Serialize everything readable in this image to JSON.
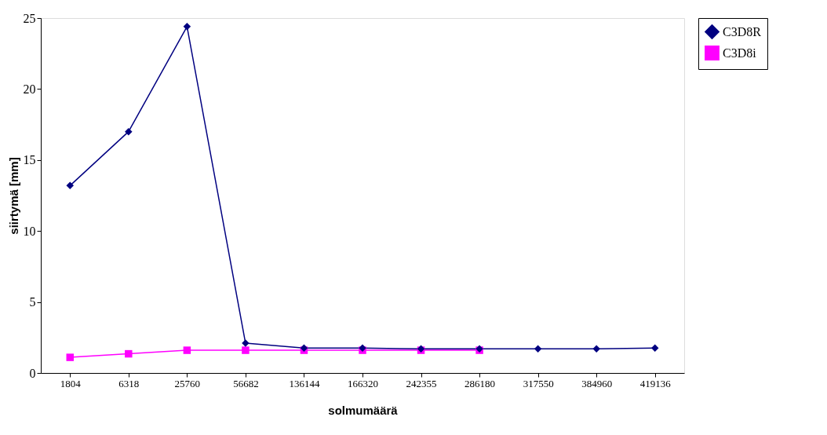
{
  "chart_data": {
    "type": "line",
    "xlabel": "solmumäärä",
    "ylabel": "siirtymä [mm]",
    "categories": [
      "1804",
      "6318",
      "25760",
      "56682",
      "136144",
      "166320",
      "242355",
      "286180",
      "317550",
      "384960",
      "419136"
    ],
    "series": [
      {
        "name": "C3D8R",
        "color": "#000080",
        "marker": "diamond",
        "values": [
          13.2,
          17.0,
          24.4,
          2.1,
          1.75,
          1.75,
          1.7,
          1.7,
          1.7,
          1.7,
          1.75
        ]
      },
      {
        "name": "C3D8i",
        "color": "#ff00ff",
        "marker": "square",
        "values": [
          1.1,
          1.35,
          1.6,
          1.6,
          1.6,
          1.6,
          1.6,
          1.6,
          null,
          null,
          null
        ]
      }
    ],
    "ylim": [
      0,
      25
    ],
    "yticks": [
      0,
      5,
      10,
      15,
      20,
      25
    ],
    "grid": false,
    "legend": "right",
    "line_style": "solid"
  }
}
